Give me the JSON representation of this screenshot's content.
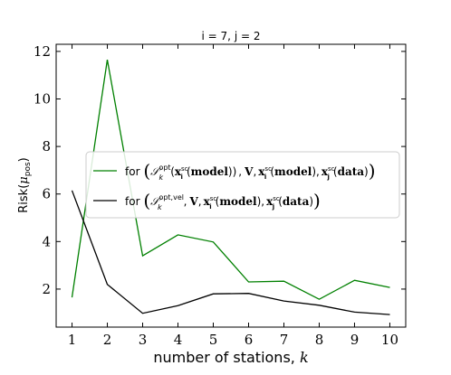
{
  "chart_data": {
    "type": "line",
    "title": "i = 7, j = 2",
    "xlabel": "number of stations, k",
    "ylabel": "Risk(μpos)",
    "x": [
      1,
      2,
      3,
      4,
      5,
      6,
      7,
      8,
      9,
      10
    ],
    "xlim": [
      0.55,
      10.45
    ],
    "ylim": [
      0.4,
      12.3
    ],
    "xticks": [
      "1",
      "2",
      "3",
      "4",
      "5",
      "6",
      "7",
      "8",
      "9",
      "10"
    ],
    "yticks": [
      {
        "value": 2,
        "label": "2"
      },
      {
        "value": 4,
        "label": "4"
      },
      {
        "value": 6,
        "label": "6"
      },
      {
        "value": 8,
        "label": "8"
      },
      {
        "value": 10,
        "label": "10"
      },
      {
        "value": 12,
        "label": "12"
      }
    ],
    "grid": false,
    "legend_position": "center-left",
    "series": [
      {
        "name": "for (S_k^opt(x_i^sc(model)), V, x_i^sc(model), x_j^sc(data))",
        "color": "#008000",
        "values": [
          1.65,
          11.65,
          3.4,
          4.28,
          3.98,
          2.3,
          2.33,
          1.57,
          2.37,
          2.07
        ]
      },
      {
        "name": "for (S_k^opt,vel, V, x_i^sc(model), x_j^sc(data))",
        "color": "#000000",
        "values": [
          6.15,
          2.2,
          0.98,
          1.3,
          1.8,
          1.82,
          1.5,
          1.32,
          1.03,
          0.93
        ]
      }
    ]
  }
}
